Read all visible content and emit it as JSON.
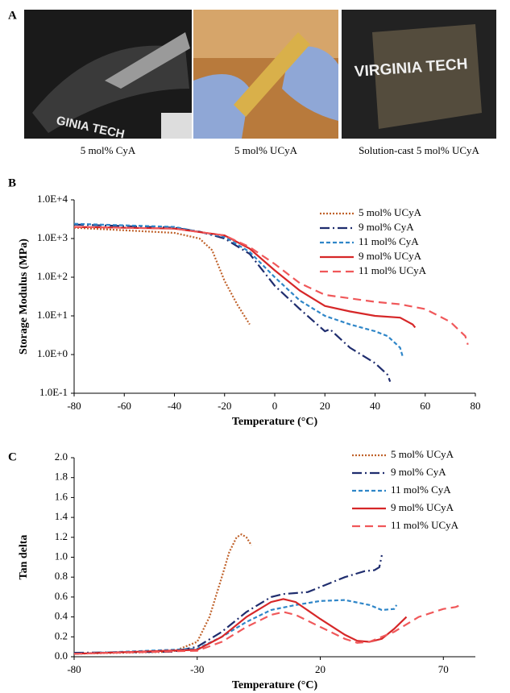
{
  "panel_a": {
    "label": "A",
    "photos": [
      {
        "caption": "5 mol% CyA",
        "text": "GINIA TECH"
      },
      {
        "caption": "5 mol% UCyA"
      },
      {
        "caption": "Solution-cast 5 mol% UCyA",
        "text": "VIRGINIA TECH"
      }
    ]
  },
  "chart_data": [
    {
      "type": "line",
      "panel_label": "B",
      "x_label": "Temperature (°C)",
      "y_label": "Storage Modulus (MPa)",
      "log_y": true,
      "legend": "upper right",
      "xlim": [
        -80,
        80
      ],
      "xticks": [
        -80,
        -60,
        -40,
        -20,
        0,
        20,
        40,
        60,
        80
      ],
      "ylim": [
        0.1,
        10000
      ],
      "yticks": [
        {
          "value": 0.1,
          "label": "1.0E-1"
        },
        {
          "value": 1,
          "label": "1.0E+0"
        },
        {
          "value": 10,
          "label": "1.0E+1"
        },
        {
          "value": 100,
          "label": "1.0E+2"
        },
        {
          "value": 1000,
          "label": "1.0E+3"
        },
        {
          "value": 10000,
          "label": "1.0E+4"
        }
      ],
      "series": [
        {
          "name": "5 mol% UCyA",
          "color": "#c0622b",
          "style": "dotted",
          "x": [
            -80,
            -40,
            -30,
            -25,
            -20,
            -15,
            -10
          ],
          "values": [
            1900,
            1400,
            1000,
            500,
            80,
            20,
            6
          ]
        },
        {
          "name": "9 mol% CyA",
          "color": "#1f2d6e",
          "style": "dash-dot",
          "x": [
            -80,
            -40,
            -30,
            -20,
            -10,
            0,
            10,
            20,
            22,
            30,
            40,
            45,
            46
          ],
          "values": [
            2300,
            1900,
            1500,
            1000,
            400,
            60,
            15,
            4,
            4.5,
            1.5,
            0.6,
            0.3,
            0.2
          ]
        },
        {
          "name": "11 mol% CyA",
          "color": "#2f86c8",
          "style": "dashed",
          "x": [
            -80,
            -40,
            -20,
            -10,
            0,
            10,
            20,
            30,
            40,
            45,
            50,
            51
          ],
          "values": [
            2400,
            2000,
            1100,
            450,
            100,
            25,
            10,
            6,
            4,
            3,
            1.5,
            0.9
          ]
        },
        {
          "name": "9 mol% UCyA",
          "color": "#d62728",
          "style": "solid",
          "x": [
            -80,
            -40,
            -20,
            -10,
            0,
            10,
            20,
            30,
            40,
            50,
            55,
            56
          ],
          "values": [
            2000,
            1800,
            1200,
            550,
            150,
            45,
            18,
            13,
            10,
            9,
            6,
            5
          ]
        },
        {
          "name": "11 mol% UCyA",
          "color": "#f0585a",
          "style": "long-dash",
          "x": [
            -80,
            -40,
            -20,
            -10,
            0,
            10,
            20,
            40,
            50,
            60,
            70,
            76,
            77
          ],
          "values": [
            2000,
            1800,
            1200,
            600,
            220,
            70,
            35,
            23,
            20,
            15,
            7,
            3,
            1.8
          ]
        }
      ]
    },
    {
      "type": "line",
      "panel_label": "C",
      "x_label": "Temperature (°C)",
      "y_label": "Tan delta",
      "log_y": false,
      "legend": "upper right",
      "xlim": [
        -80,
        83
      ],
      "xticks": [
        -80,
        -30,
        20,
        70
      ],
      "ylim": [
        0,
        2
      ],
      "yticks": [
        {
          "value": 0,
          "label": "0.0"
        },
        0.2,
        0.4,
        0.6,
        0.8,
        {
          "value": 1,
          "label": "1.0"
        },
        1.2,
        1.4,
        1.6,
        1.8,
        {
          "value": 2,
          "label": "2.0"
        }
      ],
      "series": [
        {
          "name": "5 mol% UCyA",
          "color": "#c0622b",
          "style": "dotted",
          "x": [
            -80,
            -40,
            -30,
            -25,
            -20,
            -17,
            -14,
            -12,
            -10,
            -8
          ],
          "values": [
            0.03,
            0.05,
            0.15,
            0.4,
            0.8,
            1.05,
            1.2,
            1.23,
            1.2,
            1.12
          ]
        },
        {
          "name": "9 mol% CyA",
          "color": "#1f2d6e",
          "style": "dash-dot",
          "x": [
            -80,
            -40,
            -30,
            -20,
            -10,
            0,
            5,
            15,
            20,
            30,
            38,
            42,
            44,
            45
          ],
          "values": [
            0.04,
            0.05,
            0.1,
            0.25,
            0.45,
            0.6,
            0.63,
            0.65,
            0.7,
            0.8,
            0.86,
            0.87,
            0.9,
            1.02
          ]
        },
        {
          "name": "11 mol% CyA",
          "color": "#2f86c8",
          "style": "dashed",
          "x": [
            -80,
            -30,
            -20,
            -10,
            0,
            10,
            20,
            30,
            40,
            45,
            50,
            51
          ],
          "values": [
            0.03,
            0.08,
            0.2,
            0.35,
            0.47,
            0.52,
            0.56,
            0.57,
            0.52,
            0.47,
            0.48,
            0.52
          ]
        },
        {
          "name": "9 mol% UCyA",
          "color": "#d62728",
          "style": "solid",
          "x": [
            -80,
            -30,
            -20,
            -10,
            0,
            5,
            10,
            20,
            30,
            35,
            40,
            45,
            50,
            55
          ],
          "values": [
            0.03,
            0.07,
            0.2,
            0.4,
            0.55,
            0.58,
            0.55,
            0.38,
            0.22,
            0.16,
            0.15,
            0.18,
            0.28,
            0.4
          ]
        },
        {
          "name": "11 mol% UCyA",
          "color": "#f0585a",
          "style": "long-dash",
          "x": [
            -80,
            -30,
            -20,
            -10,
            0,
            5,
            10,
            20,
            30,
            35,
            40,
            50,
            60,
            70,
            75,
            77
          ],
          "values": [
            0.03,
            0.06,
            0.15,
            0.3,
            0.42,
            0.45,
            0.42,
            0.3,
            0.18,
            0.14,
            0.15,
            0.25,
            0.4,
            0.48,
            0.5,
            0.52
          ]
        }
      ]
    }
  ]
}
